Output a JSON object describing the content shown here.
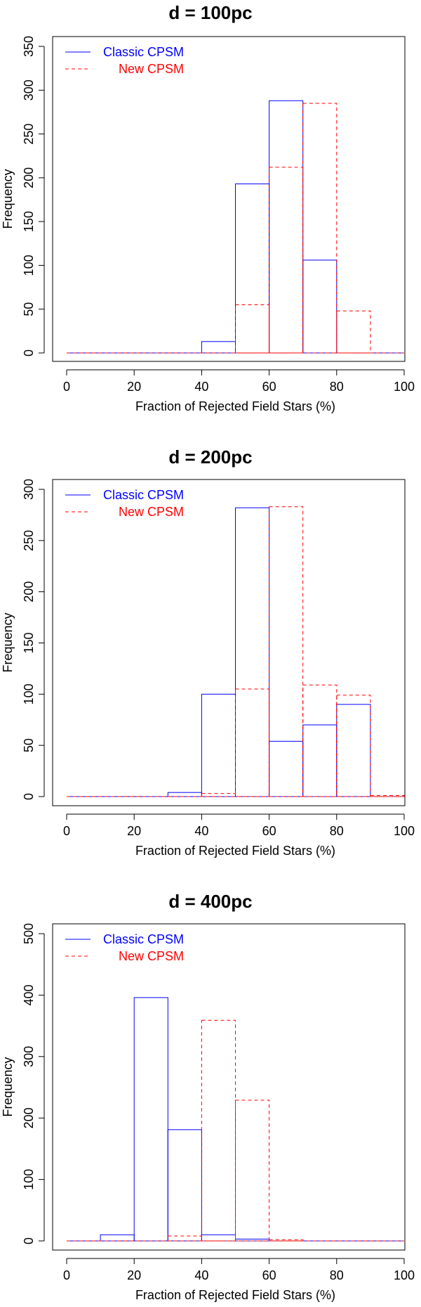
{
  "chart_data": [
    {
      "type": "histogram",
      "title": "d = 100pc",
      "xlabel": "Fraction of Rejected Field Stars (%)",
      "ylabel": "Frequency",
      "xlim": [
        0,
        100
      ],
      "ylim": [
        0,
        350
      ],
      "xticks": [
        "0",
        "20",
        "40",
        "60",
        "80",
        "100"
      ],
      "yticks": [
        "0",
        "50",
        "100",
        "150",
        "200",
        "250",
        "300",
        "350"
      ],
      "bin_edges": [
        0,
        10,
        20,
        30,
        40,
        50,
        60,
        70,
        80,
        90,
        100
      ],
      "legend_position": "top-left",
      "series": [
        {
          "name": "Classic CPSM",
          "color": "#0000ff",
          "style": "solid",
          "values": [
            0,
            0,
            0,
            0,
            13,
            193,
            288,
            106,
            0,
            0
          ]
        },
        {
          "name": "New CPSM",
          "color": "#ff0000",
          "style": "dashed",
          "values": [
            0,
            0,
            0,
            0,
            0,
            55,
            212,
            285,
            48,
            0
          ]
        }
      ]
    },
    {
      "type": "histogram",
      "title": "d = 200pc",
      "xlabel": "Fraction of Rejected Field Stars (%)",
      "ylabel": "Frequency",
      "xlim": [
        0,
        100
      ],
      "ylim": [
        0,
        300
      ],
      "xticks": [
        "0",
        "20",
        "40",
        "60",
        "80",
        "100"
      ],
      "yticks": [
        "0",
        "50",
        "100",
        "150",
        "200",
        "250",
        "300"
      ],
      "bin_edges": [
        0,
        10,
        20,
        30,
        40,
        50,
        60,
        70,
        80,
        90,
        100
      ],
      "legend_position": "top-left",
      "series": [
        {
          "name": "Classic CPSM",
          "color": "#0000ff",
          "style": "solid",
          "values": [
            0,
            0,
            0,
            4,
            100,
            282,
            54,
            70,
            90,
            0
          ]
        },
        {
          "name": "New CPSM",
          "color": "#ff0000",
          "style": "dashed",
          "values": [
            0,
            0,
            0,
            0,
            3,
            105,
            283,
            109,
            99,
            1
          ]
        }
      ]
    },
    {
      "type": "histogram",
      "title": "d = 400pc",
      "xlabel": "Fraction of Rejected Field Stars (%)",
      "ylabel": "Frequency",
      "xlim": [
        0,
        100
      ],
      "ylim": [
        0,
        500
      ],
      "xticks": [
        "0",
        "20",
        "40",
        "60",
        "80",
        "100"
      ],
      "yticks": [
        "0",
        "100",
        "200",
        "300",
        "400",
        "500"
      ],
      "bin_edges": [
        0,
        10,
        20,
        30,
        40,
        50,
        60,
        70,
        80,
        90,
        100
      ],
      "legend_position": "top-left",
      "series": [
        {
          "name": "Classic CPSM",
          "color": "#0000ff",
          "style": "solid",
          "values": [
            0,
            10,
            396,
            181,
            10,
            3,
            0,
            0,
            0,
            0
          ]
        },
        {
          "name": "New CPSM",
          "color": "#ff0000",
          "style": "dashed",
          "values": [
            0,
            0,
            0,
            8,
            359,
            229,
            2,
            0,
            0,
            0
          ]
        }
      ]
    }
  ]
}
